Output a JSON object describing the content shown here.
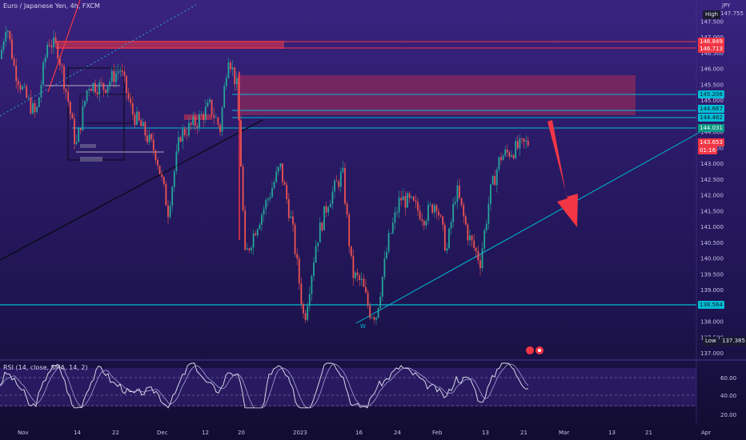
{
  "header": {
    "symbol": "Euro / Japanese Yen, 4h, FXCM",
    "currency": "JPY"
  },
  "price_axis": {
    "labels": [
      "147.500",
      "147.000",
      "146.500",
      "146.000",
      "145.500",
      "145.000",
      "144.000",
      "143.500",
      "143.000",
      "142.500",
      "142.000",
      "141.500",
      "141.000",
      "140.500",
      "140.000",
      "139.500",
      "139.000",
      "138.000",
      "137.500",
      "137.000"
    ],
    "tags": [
      {
        "name": "level-146849",
        "value": "146.849",
        "color": "#f23645"
      },
      {
        "name": "level-146713",
        "value": "146.713",
        "color": "#f23645"
      },
      {
        "name": "level-145206",
        "value": "145.206",
        "color": "#00bcd4"
      },
      {
        "name": "level-144667",
        "value": "144.667",
        "color": "#00bcd4"
      },
      {
        "name": "level-144462",
        "value": "144.462",
        "color": "#00bcd4"
      },
      {
        "name": "level-144031",
        "value": "144.031",
        "color": "#089981"
      },
      {
        "name": "last-price",
        "value": "143.653",
        "color": "#f23645"
      },
      {
        "name": "countdown",
        "value": "01:16",
        "color": "#f23645"
      },
      {
        "name": "level-138564",
        "value": "138.564",
        "color": "#00bcd4"
      }
    ],
    "high_label": "High",
    "high_value": "147.755",
    "low_label": "Low",
    "low_value": "137.385"
  },
  "time_axis": {
    "labels": [
      "Nov",
      "14",
      "22",
      "Dec",
      "12",
      "20",
      "2023",
      "16",
      "24",
      "Feb",
      "13",
      "21",
      "Mar",
      "13",
      "21",
      "Apr"
    ]
  },
  "annotations": {
    "pattern_label": "W"
  },
  "rsi": {
    "label": "RSI (14, close, SMA, 14, 2)",
    "labels": [
      "60.00",
      "40.00",
      "20.00"
    ]
  },
  "chart_data": {
    "type": "candlestick",
    "symbol": "EURJPY",
    "interval": "4h",
    "x": [
      "Nov",
      "14",
      "22",
      "Dec",
      "12",
      "20",
      "2023",
      "16",
      "24",
      "Feb",
      "13",
      "21"
    ],
    "close": [
      146.3,
      145.4,
      144.0,
      142.6,
      144.3,
      140.0,
      140.8,
      138.3,
      141.7,
      141.2,
      140.2,
      143.65
    ],
    "high_value": 147.755,
    "low_value": 137.385,
    "last_price": 143.653,
    "levels": [
      146.849,
      146.713,
      145.206,
      144.667,
      144.462,
      144.031,
      138.564
    ],
    "rsi_levels": [
      60,
      40,
      20
    ],
    "colors": {
      "up": "#26a69a",
      "down": "#ef5350",
      "level": "#00bcd4",
      "resistance": "#f23645"
    }
  }
}
